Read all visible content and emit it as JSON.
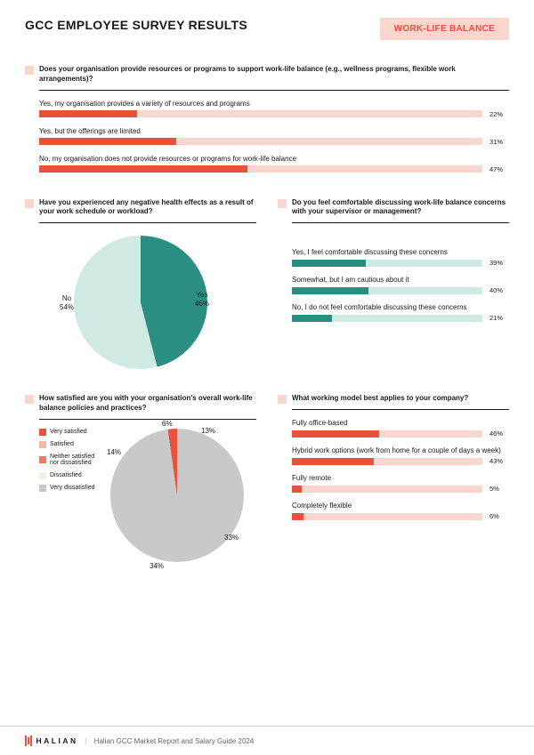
{
  "header": {
    "title": "GCC EMPLOYEE SURVEY RESULTS",
    "badge": "WORK-LIFE BALANCE"
  },
  "colors": {
    "accent_red": "#e8513b",
    "accent_red_light": "#f09182",
    "track_pink": "#fbd6ce",
    "teal_dark": "#2a8e82",
    "teal_light": "#cfe9e3",
    "grey": "#c9c9c9",
    "cream": "#f3efe8",
    "text": "#1a1a1a"
  },
  "q1": {
    "question": "Does your organisation provide resources or programs to support work-life balance (e.g., wellness programs, flexible work arrangements)?",
    "bar_fill": "#e8513b",
    "bar_track": "#fbd6ce",
    "items": [
      {
        "label": "Yes, my organisation provides a variety of resources and programs",
        "pct": 22
      },
      {
        "label": "Yes, but the offerings are limited",
        "pct": 31
      },
      {
        "label": "No, my organisation does not provide resources or programs for work-life balance",
        "pct": 47
      }
    ]
  },
  "q2": {
    "question": "Have you experienced any negative health effects as a result of your work schedule or workload?",
    "type": "pie",
    "slices": [
      {
        "label": "Yes",
        "pct": 46,
        "color": "#2a8e82"
      },
      {
        "label": "No",
        "pct": 54,
        "color": "#cfe9e3"
      }
    ]
  },
  "q3": {
    "question": "Do you feel comfortable discussing work-life balance concerns with your supervisor or management?",
    "bar_fill": "#2a8e82",
    "bar_track": "#cfe9e3",
    "items": [
      {
        "label": "Yes, I feel comfortable discussing these concerns",
        "pct": 39
      },
      {
        "label": "Somewhat, but I am cautious about it",
        "pct": 40
      },
      {
        "label": "No, I do not feel comfortable discussing these concerns",
        "pct": 21
      }
    ]
  },
  "q4": {
    "question": "How satisfied are you with your organisation's overall work-life balance policies and practices?",
    "type": "pie",
    "legend": [
      {
        "label": "Very satisfied",
        "color": "#e8513b"
      },
      {
        "label": "Satisfied",
        "color": "#f8b4a7"
      },
      {
        "label": "Neither satisfied nor dissatisfied",
        "color": "#f37a62"
      },
      {
        "label": "Dissatisfied",
        "color": "#f3efe8"
      },
      {
        "label": "Very dissatisfied",
        "color": "#c9c9c9"
      }
    ],
    "slices": [
      {
        "label": "13%",
        "pct": 13,
        "color": "#e8513b"
      },
      {
        "label": "33%",
        "pct": 33,
        "color": "#f8b4a7"
      },
      {
        "label": "34%",
        "pct": 34,
        "color": "#f37a62"
      },
      {
        "label": "14%",
        "pct": 14,
        "color": "#f3efe8"
      },
      {
        "label": "6%",
        "pct": 6,
        "color": "#c9c9c9"
      }
    ]
  },
  "q5": {
    "question": "What working model best applies to your company?",
    "bar_fill": "#e8513b",
    "bar_track": "#fbd6ce",
    "items": [
      {
        "label": "Fully office-based",
        "pct": 46
      },
      {
        "label": "Hybrid work options (work from home for a couple of days a week)",
        "pct": 43
      },
      {
        "label": "Fully remote",
        "pct": 5
      },
      {
        "label": "Completely flexible",
        "pct": 6
      }
    ]
  },
  "footer": {
    "brand": "HALIAN",
    "text": "Halian GCC Market Report and Salary Guide 2024"
  }
}
